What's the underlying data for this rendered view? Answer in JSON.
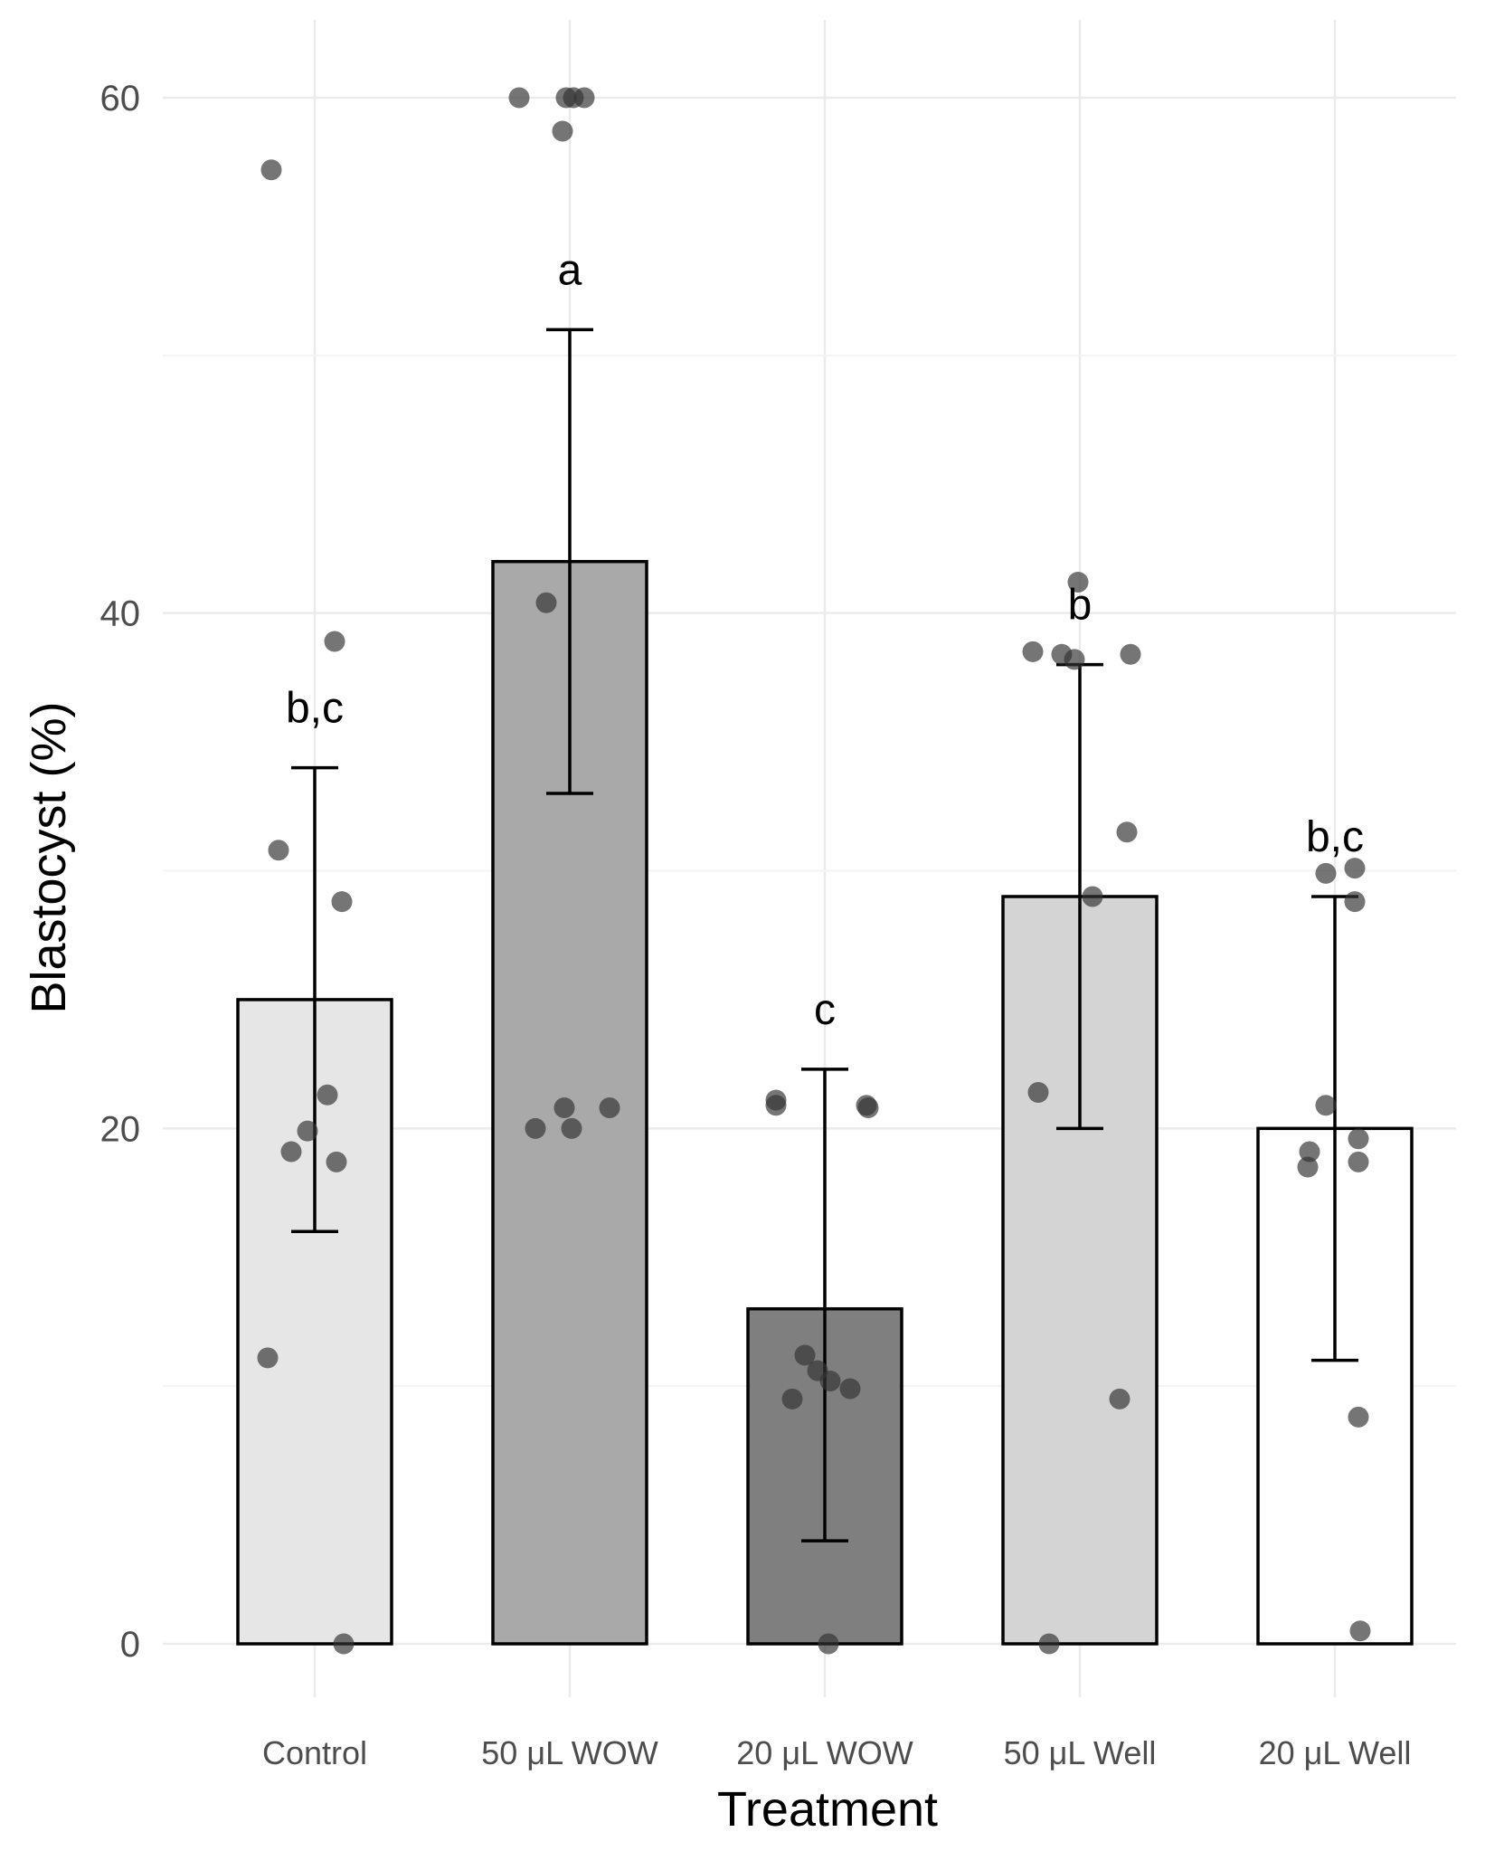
{
  "chart_data": {
    "type": "bar",
    "title": "",
    "xlabel": "Treatment",
    "ylabel": "Blastocyst (%)",
    "ylim": [
      -2.8,
      63.4
    ],
    "yticks": [
      0,
      20,
      40,
      60
    ],
    "grid": true,
    "legend": "none",
    "categories": [
      "Control",
      "50 μL WOW",
      "20 μL WOW",
      "50 μL Well",
      "20 μL Well"
    ],
    "values": [
      25.0,
      42.0,
      13.0,
      29.0,
      20.0
    ],
    "error_low": [
      16.0,
      33.0,
      4.0,
      20.0,
      11.0
    ],
    "error_high": [
      34.0,
      51.0,
      22.3,
      38.0,
      29.0
    ],
    "significance_letters": [
      "b,c",
      "a",
      "c",
      "b",
      "b,c"
    ],
    "bar_fills": [
      "#e6e6e6",
      "#a9a9a9",
      "#7f7f7f",
      "#d4d4d4",
      "#ffffff"
    ],
    "points": [
      [
        57.2,
        38.9,
        30.8,
        28.8,
        21.3,
        19.9,
        19.1,
        18.7,
        11.1,
        0.0
      ],
      [
        60.0,
        60.0,
        60.0,
        60.0,
        58.7,
        40.4,
        20.8,
        20.8,
        20.0,
        20.0
      ],
      [
        21.1,
        20.9,
        20.9,
        20.8,
        11.2,
        10.6,
        10.2,
        9.9,
        9.5,
        0.0
      ],
      [
        41.2,
        38.5,
        38.4,
        38.2,
        38.4,
        31.5,
        29.0,
        21.4,
        9.5,
        0.0
      ],
      [
        29.9,
        30.1,
        28.8,
        20.9,
        19.1,
        18.5,
        19.6,
        18.7,
        8.8,
        0.5
      ]
    ],
    "point_color": "#333333",
    "bar_outline": "#000000"
  }
}
